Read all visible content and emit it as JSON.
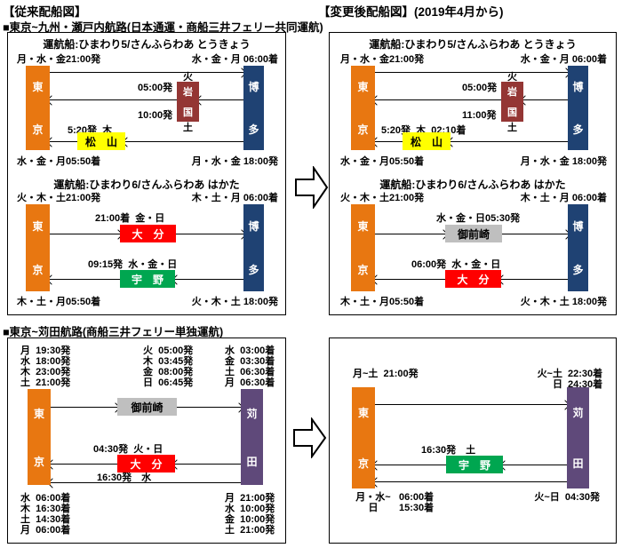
{
  "headings": {
    "before_title": "【従来配船図】",
    "after_title": "【変更後配船図】(2019年4月から)",
    "section_kyushu": "■東京~九州・瀬戸内航路(日本通運・商船三井フェリー共同運航)",
    "section_kanda": "■東京~苅田航路(商船三井フェリー単独運航)"
  },
  "colors": {
    "tokyo_orange": "#E87711",
    "hakata_navy": "#1F4273",
    "kanda_purple": "#5F497A",
    "iwakuni_darkred": "#943634",
    "matsuyama_yellow": "#FFFF00",
    "oita_red": "#FF0000",
    "uno_green": "#00A650",
    "omaezaki_gray": "#BFBFBF"
  },
  "kyushu_before": {
    "ship1": {
      "title": "運航船:ひまわり5/さんふらわあ とうきょう",
      "tokyo": "東京",
      "hakata": "博多",
      "tokyo_depart": "月・水・金21:00発",
      "hakata_arrive": "水・金・月 06:00着",
      "iwakuni_name": "岩国",
      "iwakuni_day_top": "火",
      "iwakuni_day_bottom": "土",
      "iwakuni_depart1": "05:00発",
      "iwakuni_depart2": "10:00発",
      "matsuyama_name": "松　山",
      "matsuyama_label": "5:20発  木",
      "tokyo_arrive": "水・金・月05:50着",
      "hakata_depart": "月・水・金 18:00発"
    },
    "ship2": {
      "title": "運航船:ひまわり6/さんふらわあ はかた",
      "tokyo": "東京",
      "hakata": "博多",
      "tokyo_depart": "火・木・土21:00発",
      "hakata_arrive": "木・土・月 06:00着",
      "oita_name": "大　分",
      "oita_label": "21:00着  金・日",
      "uno_name": "宇　野",
      "uno_label": "09:15発  水・金・日",
      "tokyo_arrive": "木・土・月05:50着",
      "hakata_depart": "火・木・土 18:00発"
    }
  },
  "kyushu_after": {
    "ship1": {
      "title": "運航船:ひまわり5/さんふらわあ とうきょう",
      "tokyo": "東京",
      "hakata": "博多",
      "tokyo_depart": "月・水・金21:00発",
      "hakata_arrive": "水・金・月 06:00着",
      "iwakuni_name": "岩国",
      "iwakuni_day_top": "火",
      "iwakuni_day_bottom": "土",
      "iwakuni_depart1": "05:00発",
      "iwakuni_depart2": "11:00発",
      "matsuyama_name": "松　山",
      "matsuyama_label": "5:20発  木  02:10着",
      "tokyo_arrive": "水・金・月05:50着",
      "hakata_depart": "月・水・金 18:00発"
    },
    "ship2": {
      "title": "運航船:ひまわり6/さんふらわあ はかた",
      "tokyo": "東京",
      "hakata": "博多",
      "tokyo_depart": "火・木・土21:00発",
      "hakata_arrive": "木・土・月 06:00着",
      "omaezaki_name": "御前崎",
      "omaezaki_label": "水・金・日05:30発",
      "oita_name": "大　分",
      "oita_label": "06:00発  水・金・日",
      "tokyo_arrive": "木・土・月05:50着",
      "hakata_depart": "火・木・土 18:00発"
    }
  },
  "kanda_before": {
    "tokyo": "東京",
    "kanda": "苅田",
    "omaezaki_name": "御前崎",
    "oita_name": "大　分",
    "oita_label": "04:30発  火・日",
    "direct_return_label": "16:30発　水",
    "tokyo_departures": [
      "月  19:30発",
      "水  18:00発",
      "木  23:00発",
      "土  21:00発"
    ],
    "omaezaki_departures": [
      "火  05:00発",
      "木  03:45発",
      "金  08:00発",
      "日  06:45発"
    ],
    "kanda_arrivals": [
      "水  03:00着",
      "金  03:30着",
      "土  06:30着",
      "月  06:30着"
    ],
    "tokyo_arrivals": [
      "水  06:00着",
      "木  16:30着",
      "土  14:30着",
      "月  06:00着"
    ],
    "kanda_departures": [
      "月  21:00発",
      "水  10:00発",
      "金  10:00発",
      "土  21:00発"
    ]
  },
  "kanda_after": {
    "tokyo": "東京",
    "kanda": "苅田",
    "tokyo_depart": "月~土  21:00発",
    "kanda_arrivals": [
      {
        "days": "火~土",
        "time": "22:30着"
      },
      {
        "days": "日",
        "time": "24:30着"
      }
    ],
    "uno_name": "宇　野",
    "uno_label": "16:30発　土",
    "kanda_depart": "火~日  04:30発",
    "tokyo_arrivals": [
      {
        "days": "月・水~",
        "time": "06:00着"
      },
      {
        "days": "日",
        "time": "15:30着"
      }
    ]
  }
}
